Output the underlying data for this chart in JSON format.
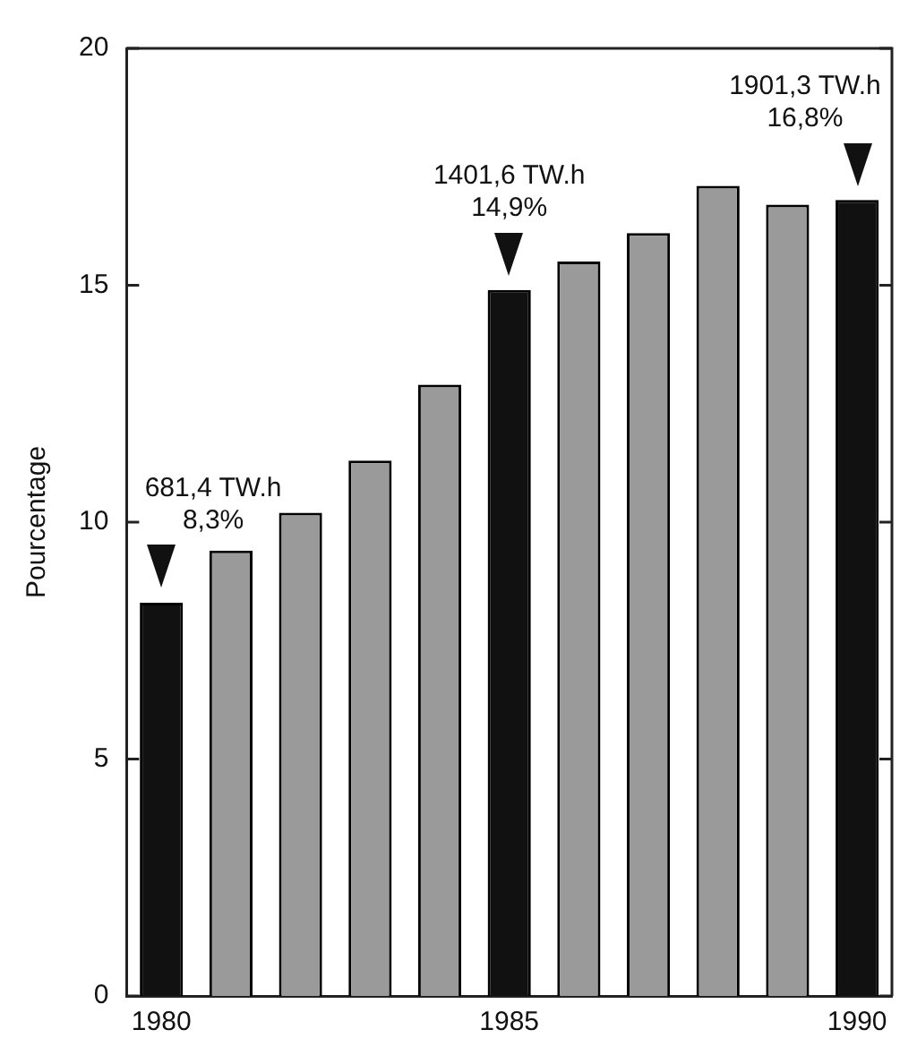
{
  "chart_data": {
    "type": "bar",
    "ylabel": "Pourcentage",
    "categories": [
      "1980",
      null,
      null,
      null,
      null,
      "1985",
      null,
      null,
      null,
      null,
      "1990"
    ],
    "values": [
      8.3,
      9.4,
      10.2,
      11.3,
      12.9,
      14.9,
      15.5,
      16.1,
      17.1,
      16.7,
      16.8
    ],
    "colors": [
      "#111111",
      "#9a9a9a",
      "#9a9a9a",
      "#9a9a9a",
      "#9a9a9a",
      "#111111",
      "#9a9a9a",
      "#9a9a9a",
      "#9a9a9a",
      "#9a9a9a",
      "#111111"
    ],
    "ylim": [
      0,
      20
    ],
    "yticks": [
      0,
      5,
      10,
      15,
      20
    ],
    "grid": false,
    "legend": false,
    "annotations": [
      {
        "text": "681,4 TW.h\n8,3%",
        "x": "1980",
        "y": 8.3
      },
      {
        "text": "1401,6 TW.h\n14,9%",
        "x": "1985",
        "y": 14.9
      },
      {
        "text": "1901,3 TW.h\n16,8%",
        "x": "1990",
        "y": 16.8
      }
    ]
  }
}
